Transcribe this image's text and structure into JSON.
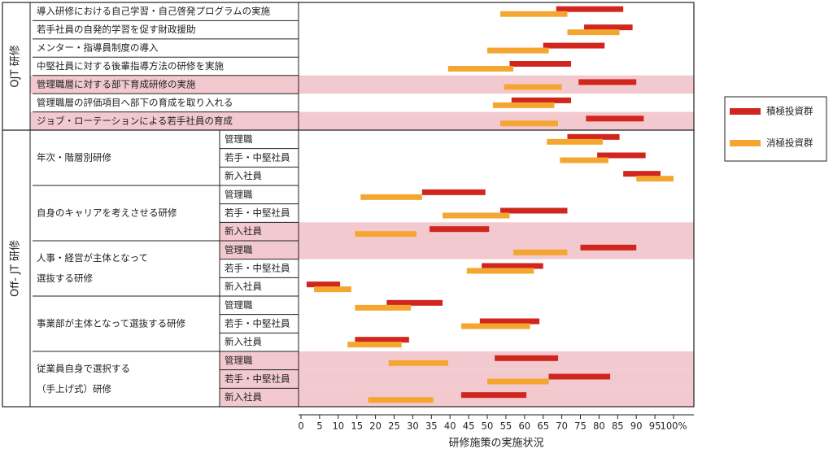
{
  "chart_data": {
    "type": "range_bar",
    "xlabel": "研修施策の実施状況",
    "xlim": [
      0,
      100
    ],
    "xticks": [
      0,
      5,
      10,
      15,
      20,
      25,
      30,
      35,
      40,
      45,
      50,
      55,
      60,
      65,
      70,
      75,
      80,
      85,
      90,
      95,
      {
        "value": 100,
        "label": "100%"
      }
    ],
    "series": [
      {
        "name": "積極投資群",
        "color": "#d0261e"
      },
      {
        "name": "消極投資群",
        "color": "#f5a630"
      }
    ],
    "sections": [
      {
        "name": "OJT 研修",
        "rows": [
          {
            "label": "導入研修における自己学習・自己啓発プログラムの実施",
            "highlight": false,
            "values": [
              [
                68.5,
                86.5
              ],
              [
                53.5,
                71.5
              ]
            ]
          },
          {
            "label": "若手社員の自発的学習を促す財政援助",
            "highlight": false,
            "values": [
              [
                76,
                89
              ],
              [
                71.5,
                85.5
              ]
            ]
          },
          {
            "label": "メンター・指導員制度の導入",
            "highlight": false,
            "values": [
              [
                65,
                81.5
              ],
              [
                50,
                66.5
              ]
            ]
          },
          {
            "label": "中堅社員に対する後輩指導方法の研修を実施",
            "highlight": false,
            "values": [
              [
                56,
                72.5
              ],
              [
                39.5,
                57
              ]
            ]
          },
          {
            "label": "管理職層に対する部下育成研修の実施",
            "highlight": true,
            "values": [
              [
                74.5,
                90
              ],
              [
                54.5,
                70
              ]
            ]
          },
          {
            "label": "管理職層の評価項目へ部下の育成を取り入れる",
            "highlight": false,
            "values": [
              [
                56.5,
                72.5
              ],
              [
                51.5,
                68
              ]
            ]
          },
          {
            "label": "ジョブ・ローテーションによる若手社員の育成",
            "highlight": true,
            "values": [
              [
                76.5,
                92
              ],
              [
                53.5,
                69
              ]
            ]
          }
        ]
      },
      {
        "name": "Off- JT 研修",
        "groups": [
          {
            "label": [
              "年次・階層別研修"
            ],
            "rows": [
              {
                "label": "管理職",
                "highlight": false,
                "values": [
                  [
                    71.5,
                    85.5
                  ],
                  [
                    66,
                    81
                  ]
                ]
              },
              {
                "label": "若手・中堅社員",
                "highlight": false,
                "values": [
                  [
                    79.5,
                    92.5
                  ],
                  [
                    69.5,
                    82.5
                  ]
                ]
              },
              {
                "label": "新入社員",
                "highlight": false,
                "values": [
                  [
                    86.5,
                    96.5
                  ],
                  [
                    90,
                    100
                  ]
                ]
              }
            ]
          },
          {
            "label": [
              "自身のキャリアを考えさせる研修"
            ],
            "rows": [
              {
                "label": "管理職",
                "highlight": false,
                "values": [
                  [
                    32.5,
                    49.5
                  ],
                  [
                    16,
                    32.5
                  ]
                ]
              },
              {
                "label": "若手・中堅社員",
                "highlight": false,
                "values": [
                  [
                    53.5,
                    71.5
                  ],
                  [
                    38,
                    56
                  ]
                ]
              },
              {
                "label": "新入社員",
                "highlight": true,
                "values": [
                  [
                    34.5,
                    50.5
                  ],
                  [
                    14.5,
                    31
                  ]
                ]
              }
            ]
          },
          {
            "label": [
              "人事・経営が主体となって",
              "選抜する研修"
            ],
            "rows": [
              {
                "label": "管理職",
                "highlight": true,
                "values": [
                  [
                    75,
                    90
                  ],
                  [
                    57,
                    71.5
                  ]
                ]
              },
              {
                "label": "若手・中堅社員",
                "highlight": false,
                "values": [
                  [
                    48.5,
                    65
                  ],
                  [
                    44.5,
                    62.5
                  ]
                ]
              },
              {
                "label": "新入社員",
                "highlight": false,
                "values": [
                  [
                    1.5,
                    10.5
                  ],
                  [
                    3.5,
                    13.5
                  ]
                ]
              }
            ]
          },
          {
            "label": [
              "事業部が主体となって選抜する研修"
            ],
            "rows": [
              {
                "label": "管理職",
                "highlight": false,
                "values": [
                  [
                    23,
                    38
                  ],
                  [
                    14.5,
                    29.5
                  ]
                ]
              },
              {
                "label": "若手・中堅社員",
                "highlight": false,
                "values": [
                  [
                    48,
                    64
                  ],
                  [
                    43,
                    61.5
                  ]
                ]
              },
              {
                "label": "新入社員",
                "highlight": false,
                "values": [
                  [
                    14.5,
                    29
                  ],
                  [
                    12.5,
                    27
                  ]
                ]
              }
            ]
          },
          {
            "label": [
              "従業員自身で選択する",
              "（手上げ式）研修"
            ],
            "rows": [
              {
                "label": "管理職",
                "highlight": true,
                "values": [
                  [
                    52,
                    69
                  ],
                  [
                    23.5,
                    39.5
                  ]
                ]
              },
              {
                "label": "若手・中堅社員",
                "highlight": true,
                "values": [
                  [
                    66.5,
                    83
                  ],
                  [
                    50,
                    66.5
                  ]
                ]
              },
              {
                "label": "新入社員",
                "highlight": true,
                "values": [
                  [
                    43,
                    60.5
                  ],
                  [
                    18,
                    35.5
                  ]
                ]
              }
            ]
          }
        ]
      }
    ]
  }
}
